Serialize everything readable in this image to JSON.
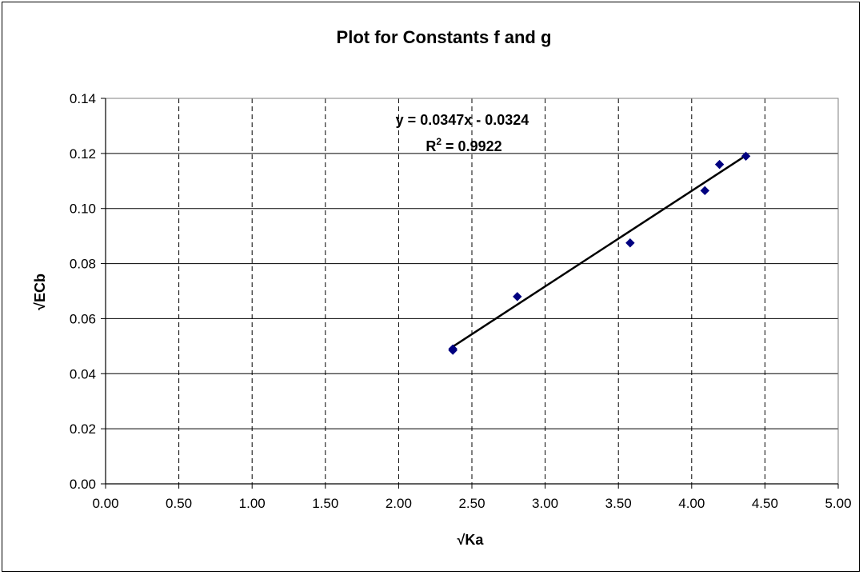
{
  "chart_data": {
    "type": "scatter",
    "title": "Plot for Constants f and g",
    "xlabel": "√Ka",
    "ylabel": "√ECb",
    "xlim": [
      0,
      5
    ],
    "ylim": [
      0,
      0.14
    ],
    "x_ticks": [
      "0.00",
      "0.50",
      "1.00",
      "1.50",
      "2.00",
      "2.50",
      "3.00",
      "3.50",
      "4.00",
      "4.50",
      "5.00"
    ],
    "y_ticks": [
      "0.00",
      "0.02",
      "0.04",
      "0.06",
      "0.08",
      "0.10",
      "0.12",
      "0.14"
    ],
    "grid": {
      "x": "dashed",
      "y": "solid"
    },
    "legend": "none",
    "series": [
      {
        "points": [
          {
            "x": 2.37,
            "y": 0.049
          },
          {
            "x": 2.37,
            "y": 0.0485
          },
          {
            "x": 2.81,
            "y": 0.068
          },
          {
            "x": 3.58,
            "y": 0.0875
          },
          {
            "x": 4.09,
            "y": 0.1065
          },
          {
            "x": 4.19,
            "y": 0.116
          },
          {
            "x": 4.37,
            "y": 0.119
          }
        ],
        "color": "#000080",
        "marker": "diamond"
      }
    ],
    "trendline": {
      "slope": 0.0347,
      "intercept": -0.0324,
      "x_range": [
        2.37,
        4.37
      ],
      "color": "#000000",
      "equation_label": "y = 0.0347x - 0.0324",
      "r2_prefix": "R",
      "r2_superscript": "2",
      "r2_value_text": " = 0.9922"
    }
  }
}
